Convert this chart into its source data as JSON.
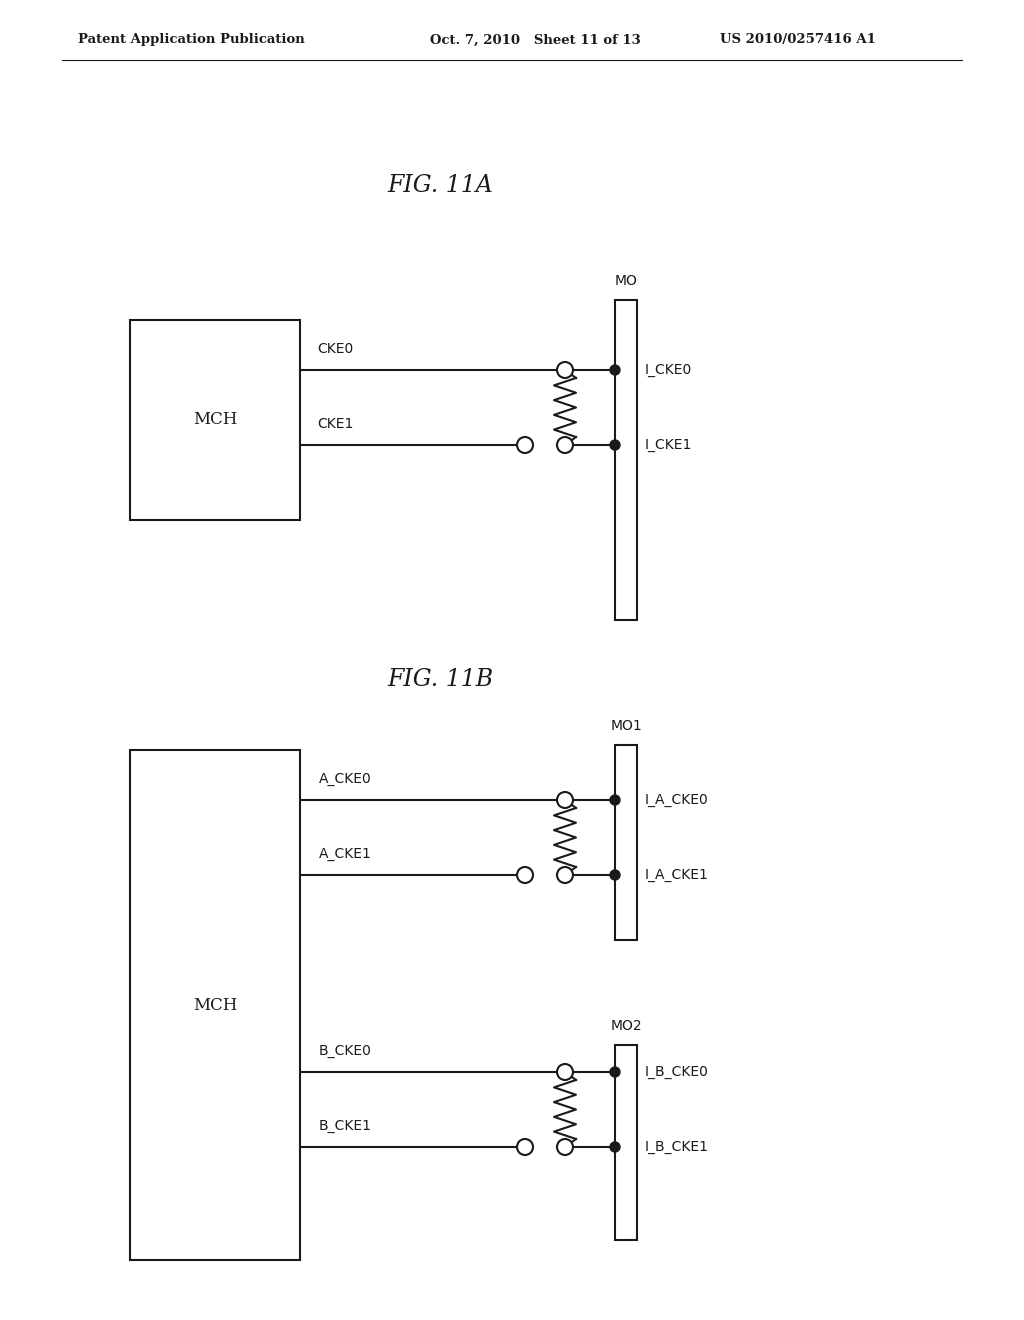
{
  "bg_color": "#ffffff",
  "line_color": "#1a1a1a",
  "text_color": "#1a1a1a",
  "header_left": "Patent Application Publication",
  "header_mid": "Oct. 7, 2010   Sheet 11 of 13",
  "header_right": "US 2010/0257416 A1",
  "fig11a_title": "FIG. 11A",
  "fig11b_title": "FIG. 11B",
  "mch_label": "MCH",
  "mo_label": "MO",
  "mo1_label": "MO1",
  "mo2_label": "MO2",
  "ck0_label": "CKE0",
  "ck1_label": "CKE1",
  "ick0_label": "I_CKE0",
  "ick1_label": "I_CKE1",
  "ack0_label": "A_CKE0",
  "ack1_label": "A_CKE1",
  "bck0_label": "B_CKE0",
  "bck1_label": "B_CKE1",
  "iack0_label": "I_A_CKE0",
  "iack1_label": "I_A_CKE1",
  "ibck0_label": "I_B_CKE0",
  "ibck1_label": "I_B_CKE1"
}
